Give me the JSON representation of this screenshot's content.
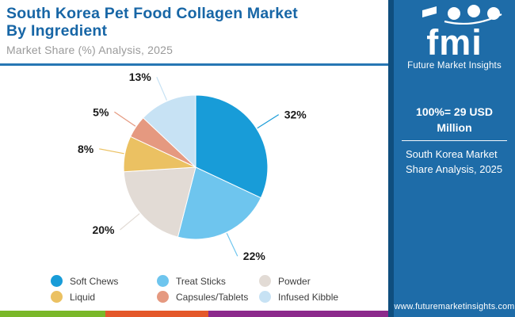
{
  "header": {
    "title_line1": "South Korea Pet Food Collagen Market",
    "title_line2": "By Ingredient",
    "subtitle": "Market Share (%) Analysis, 2025"
  },
  "chart_data": {
    "type": "pie",
    "title": "South Korea Pet Food Collagen Market By Ingredient",
    "subtitle": "Market Share (%) Analysis, 2025",
    "categories": [
      "Soft Chews",
      "Treat Sticks",
      "Powder",
      "Liquid",
      "Capsules/Tablets",
      "Infused Kibble"
    ],
    "values": [
      32,
      22,
      20,
      8,
      5,
      13
    ],
    "unit": "%",
    "colors": [
      "#189CD8",
      "#6EC5EE",
      "#E2DBD5",
      "#EBC162",
      "#E59980",
      "#C7E2F4"
    ],
    "legend_position": "bottom",
    "start_angle_deg": 0,
    "direction": "clockwise",
    "labels_shown": [
      "32%",
      "22%",
      "20%",
      "8%",
      "5%",
      "13%"
    ]
  },
  "sidebar": {
    "logo_text": "fmi",
    "logo_caption": "Future Market Insights",
    "scale_line1": "100%= 29 USD",
    "scale_line2": "Million",
    "caption_line1": "South Korea Market",
    "caption_line2": "Share Analysis, 2025",
    "website": "www.futuremarketinsights.com"
  },
  "colors": {
    "title_text": "#1766A6",
    "subtitle_text": "#9A9A9A",
    "header_rule": "#2777B4",
    "sidebar_bg": "#1E6CA8",
    "sidebar_edge": "#0F4E7E",
    "percent_label": "#1A1A1A",
    "footer_segments": [
      "#7AB829",
      "#E4582A",
      "#8C2A8C"
    ]
  }
}
